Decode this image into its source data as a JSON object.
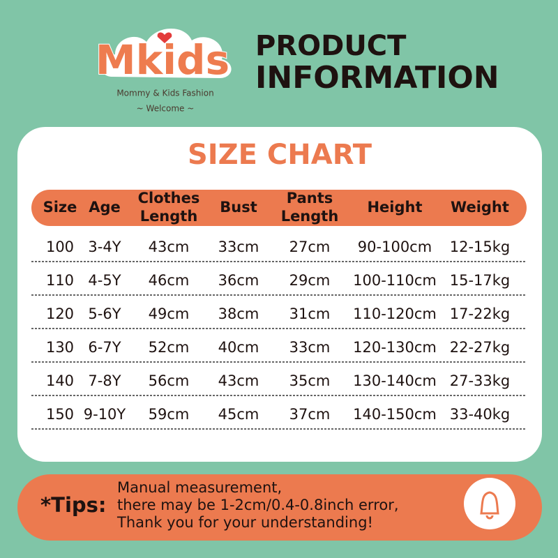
{
  "logo": {
    "brand": "Mkids",
    "tagline": "Mommy & Kids Fashion",
    "welcome": "~ Welcome ~"
  },
  "header": {
    "title_lines": [
      "PRODUCT",
      "INFORMATION"
    ]
  },
  "table": {
    "title": "SIZE CHART",
    "columns": [
      [
        "Size"
      ],
      [
        "Age"
      ],
      [
        "Clothes",
        "Length"
      ],
      [
        "Bust"
      ],
      [
        "Pants",
        "Length"
      ],
      [
        "Height"
      ],
      [
        "Weight"
      ]
    ],
    "rows": [
      [
        "100",
        "3-4Y",
        "43cm",
        "33cm",
        "27cm",
        "90-100cm",
        "12-15kg"
      ],
      [
        "110",
        "4-5Y",
        "46cm",
        "36cm",
        "29cm",
        "100-110cm",
        "15-17kg"
      ],
      [
        "120",
        "5-6Y",
        "49cm",
        "38cm",
        "31cm",
        "110-120cm",
        "17-22kg"
      ],
      [
        "130",
        "6-7Y",
        "52cm",
        "40cm",
        "33cm",
        "120-130cm",
        "22-27kg"
      ],
      [
        "140",
        "7-8Y",
        "56cm",
        "43cm",
        "35cm",
        "130-140cm",
        "27-33kg"
      ],
      [
        "150",
        "9-10Y",
        "59cm",
        "45cm",
        "37cm",
        "140-150cm",
        "33-40kg"
      ]
    ]
  },
  "tips": {
    "label": "*Tips:",
    "lines": [
      "Manual measurement,",
      "there may be 1-2cm/0.4-0.8inch error,",
      "Thank you for your understanding!"
    ]
  }
}
